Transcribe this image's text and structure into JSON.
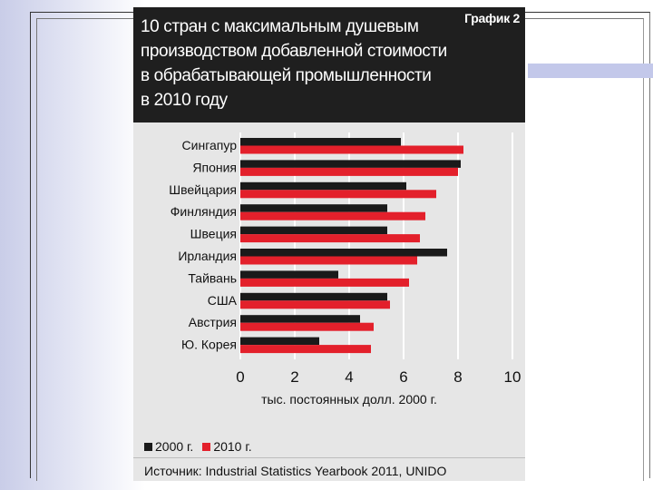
{
  "figure": {
    "graph_tag": "График 2",
    "title_lines": [
      "10 стран с максимальным душевым",
      "производством добавленной стоимости",
      "в обрабатывающей промышленности",
      "в 2010 году"
    ],
    "source": "Источник: Industrial Statistics Yearbook 2011, UNIDO"
  },
  "colors": {
    "series_2000": "#1a1a1a",
    "series_2010": "#e3202b",
    "grid": "#ffffff",
    "plot_bg": "#e6e6e6"
  },
  "chart_data": {
    "type": "bar",
    "orientation": "horizontal",
    "title": "10 стран с максимальным душевым производством добавленной стоимости в обрабатывающей промышленности в 2010 году",
    "xlabel": "тыс. постоянных долл. 2000 г.",
    "ylabel": "",
    "xlim": [
      0,
      10
    ],
    "xticks": [
      "0",
      "2",
      "4",
      "6",
      "8",
      "10"
    ],
    "grid": true,
    "legend_position": "bottom-left",
    "categories": [
      "Сингапур",
      "Япония",
      "Швейцария",
      "Финляндия",
      "Швеция",
      "Ирландия",
      "Тайвань",
      "США",
      "Австрия",
      "Ю. Корея"
    ],
    "series": [
      {
        "name": "2000 г.",
        "values": [
          5.9,
          8.1,
          6.1,
          5.4,
          5.4,
          7.6,
          3.6,
          5.4,
          4.4,
          2.9
        ]
      },
      {
        "name": "2010 г.",
        "values": [
          8.2,
          8.0,
          7.2,
          6.8,
          6.6,
          6.5,
          6.2,
          5.5,
          4.9,
          4.8
        ]
      }
    ]
  }
}
